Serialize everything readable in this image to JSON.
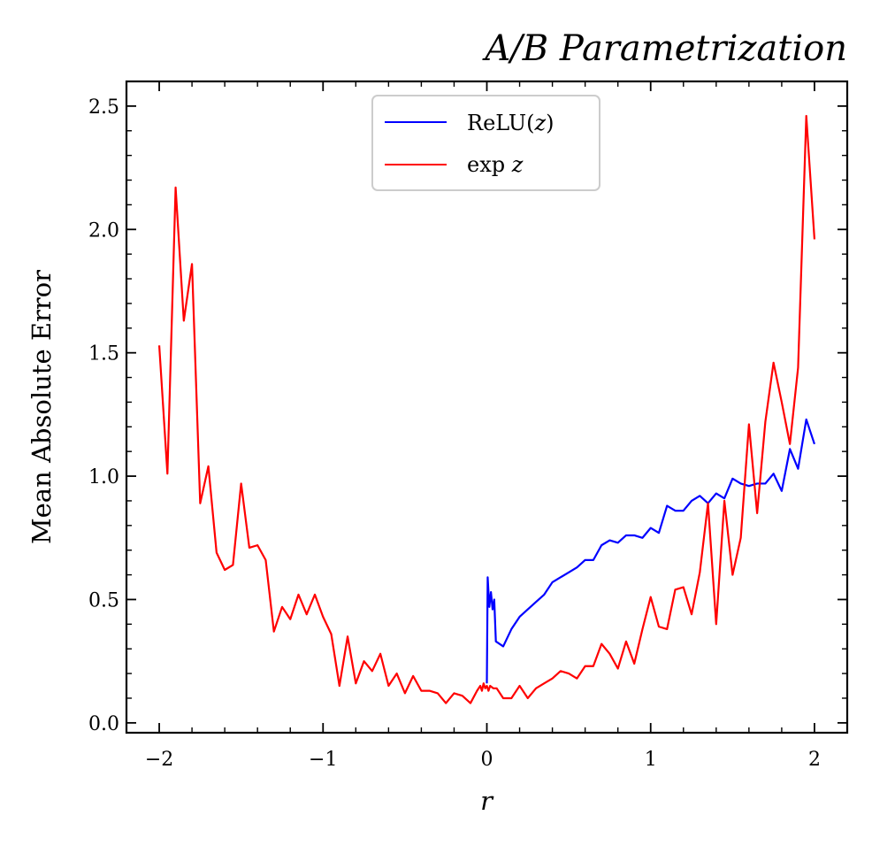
{
  "chart_data": {
    "type": "line",
    "title": "A/B Parametrization",
    "xlabel": "r",
    "ylabel": "Mean Absolute Error",
    "xlim": [
      -2.2,
      2.2
    ],
    "ylim": [
      -0.04,
      2.6
    ],
    "x_ticks": [
      {
        "value": -2,
        "label": "−2"
      },
      {
        "value": -1,
        "label": "−1"
      },
      {
        "value": 0,
        "label": "0"
      },
      {
        "value": 1,
        "label": "1"
      },
      {
        "value": 2,
        "label": "2"
      }
    ],
    "y_ticks": [
      {
        "value": 0.0,
        "label": "0.0"
      },
      {
        "value": 0.5,
        "label": "0.5"
      },
      {
        "value": 1.0,
        "label": "1.0"
      },
      {
        "value": 1.5,
        "label": "1.5"
      },
      {
        "value": 2.0,
        "label": "2.0"
      },
      {
        "value": 2.5,
        "label": "2.5"
      }
    ],
    "grid": false,
    "legend_position": "upper center",
    "series": [
      {
        "name": "ReLU(z)",
        "color": "#0000ff",
        "points": [
          [
            0.0,
            0.16
          ],
          [
            0.005,
            0.59
          ],
          [
            0.015,
            0.47
          ],
          [
            0.025,
            0.53
          ],
          [
            0.035,
            0.46
          ],
          [
            0.045,
            0.5
          ],
          [
            0.055,
            0.33
          ],
          [
            0.1,
            0.31
          ],
          [
            0.15,
            0.38
          ],
          [
            0.2,
            0.43
          ],
          [
            0.25,
            0.46
          ],
          [
            0.3,
            0.49
          ],
          [
            0.35,
            0.52
          ],
          [
            0.4,
            0.57
          ],
          [
            0.45,
            0.59
          ],
          [
            0.5,
            0.61
          ],
          [
            0.55,
            0.63
          ],
          [
            0.6,
            0.66
          ],
          [
            0.65,
            0.66
          ],
          [
            0.7,
            0.72
          ],
          [
            0.75,
            0.74
          ],
          [
            0.8,
            0.73
          ],
          [
            0.85,
            0.76
          ],
          [
            0.9,
            0.76
          ],
          [
            0.95,
            0.75
          ],
          [
            1.0,
            0.79
          ],
          [
            1.05,
            0.77
          ],
          [
            1.1,
            0.88
          ],
          [
            1.15,
            0.86
          ],
          [
            1.2,
            0.86
          ],
          [
            1.25,
            0.9
          ],
          [
            1.3,
            0.92
          ],
          [
            1.35,
            0.89
          ],
          [
            1.4,
            0.93
          ],
          [
            1.45,
            0.91
          ],
          [
            1.5,
            0.99
          ],
          [
            1.55,
            0.97
          ],
          [
            1.6,
            0.96
          ],
          [
            1.65,
            0.97
          ],
          [
            1.7,
            0.97
          ],
          [
            1.75,
            1.01
          ],
          [
            1.8,
            0.94
          ],
          [
            1.85,
            1.11
          ],
          [
            1.9,
            1.03
          ],
          [
            1.95,
            1.23
          ],
          [
            2.0,
            1.13
          ]
        ]
      },
      {
        "name": "exp z",
        "color": "#ff0000",
        "points": [
          [
            -2.0,
            1.53
          ],
          [
            -1.95,
            1.01
          ],
          [
            -1.9,
            2.17
          ],
          [
            -1.85,
            1.63
          ],
          [
            -1.8,
            1.86
          ],
          [
            -1.75,
            0.89
          ],
          [
            -1.7,
            1.04
          ],
          [
            -1.65,
            0.69
          ],
          [
            -1.6,
            0.62
          ],
          [
            -1.55,
            0.64
          ],
          [
            -1.5,
            0.97
          ],
          [
            -1.45,
            0.71
          ],
          [
            -1.4,
            0.72
          ],
          [
            -1.35,
            0.66
          ],
          [
            -1.3,
            0.37
          ],
          [
            -1.25,
            0.47
          ],
          [
            -1.2,
            0.42
          ],
          [
            -1.15,
            0.52
          ],
          [
            -1.1,
            0.44
          ],
          [
            -1.05,
            0.52
          ],
          [
            -1.0,
            0.43
          ],
          [
            -0.95,
            0.36
          ],
          [
            -0.9,
            0.15
          ],
          [
            -0.85,
            0.35
          ],
          [
            -0.8,
            0.16
          ],
          [
            -0.75,
            0.25
          ],
          [
            -0.7,
            0.21
          ],
          [
            -0.65,
            0.28
          ],
          [
            -0.6,
            0.15
          ],
          [
            -0.55,
            0.2
          ],
          [
            -0.5,
            0.12
          ],
          [
            -0.45,
            0.19
          ],
          [
            -0.4,
            0.13
          ],
          [
            -0.35,
            0.13
          ],
          [
            -0.3,
            0.12
          ],
          [
            -0.25,
            0.08
          ],
          [
            -0.2,
            0.12
          ],
          [
            -0.15,
            0.11
          ],
          [
            -0.1,
            0.08
          ],
          [
            -0.06,
            0.13
          ],
          [
            -0.04,
            0.15
          ],
          [
            -0.03,
            0.13
          ],
          [
            -0.02,
            0.16
          ],
          [
            -0.01,
            0.14
          ],
          [
            0.0,
            0.15
          ],
          [
            0.01,
            0.13
          ],
          [
            0.02,
            0.15
          ],
          [
            0.04,
            0.14
          ],
          [
            0.06,
            0.14
          ],
          [
            0.1,
            0.1
          ],
          [
            0.15,
            0.1
          ],
          [
            0.2,
            0.15
          ],
          [
            0.25,
            0.1
          ],
          [
            0.3,
            0.14
          ],
          [
            0.35,
            0.16
          ],
          [
            0.4,
            0.18
          ],
          [
            0.45,
            0.21
          ],
          [
            0.5,
            0.2
          ],
          [
            0.55,
            0.18
          ],
          [
            0.6,
            0.23
          ],
          [
            0.65,
            0.23
          ],
          [
            0.7,
            0.32
          ],
          [
            0.75,
            0.28
          ],
          [
            0.8,
            0.22
          ],
          [
            0.85,
            0.33
          ],
          [
            0.9,
            0.24
          ],
          [
            0.95,
            0.38
          ],
          [
            1.0,
            0.51
          ],
          [
            1.05,
            0.39
          ],
          [
            1.1,
            0.38
          ],
          [
            1.15,
            0.54
          ],
          [
            1.2,
            0.55
          ],
          [
            1.25,
            0.44
          ],
          [
            1.3,
            0.61
          ],
          [
            1.35,
            0.89
          ],
          [
            1.4,
            0.4
          ],
          [
            1.45,
            0.9
          ],
          [
            1.5,
            0.6
          ],
          [
            1.55,
            0.75
          ],
          [
            1.6,
            1.21
          ],
          [
            1.65,
            0.85
          ],
          [
            1.7,
            1.22
          ],
          [
            1.75,
            1.46
          ],
          [
            1.8,
            1.3
          ],
          [
            1.85,
            1.13
          ],
          [
            1.9,
            1.44
          ],
          [
            1.95,
            2.46
          ],
          [
            2.0,
            1.96
          ]
        ]
      }
    ]
  },
  "legend": {
    "entries": [
      {
        "label_main": "ReLU(",
        "label_var": "z",
        "label_end": ")"
      },
      {
        "label_main": "exp ",
        "label_var": "z",
        "label_end": ""
      }
    ]
  }
}
